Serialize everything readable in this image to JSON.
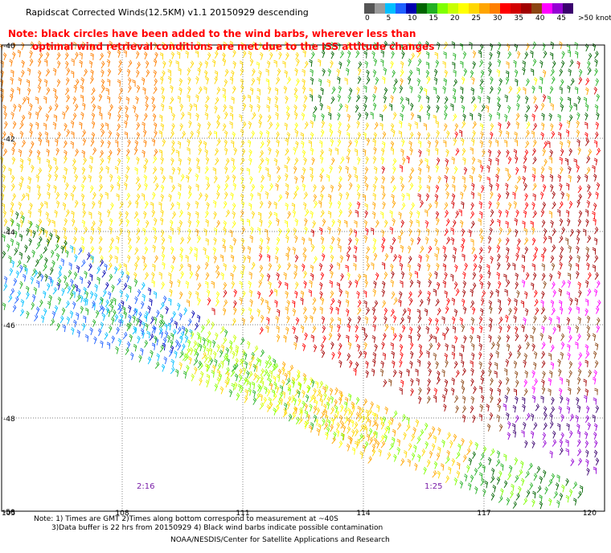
{
  "title": "Rapidscat Corrected Winds(12.5KM) v1.1 20150929 descending",
  "note_line1": "Note: black circles have been added to the wind barbs, wherever less than",
  "note_line2": "optimal wind retrieval conditions are met due to the ISS attitude changes",
  "legend": {
    "labels": [
      "0",
      "5",
      "10",
      "15",
      "20",
      "25",
      "30",
      "35",
      "40",
      "45",
      ">50 knots"
    ],
    "colors": [
      "#555555",
      "#9a9a9a",
      "#00bfff",
      "#1e60ff",
      "#0000b0",
      "#006400",
      "#22b022",
      "#7fff00",
      "#c8ff00",
      "#ffff00",
      "#ffd700",
      "#ffa500",
      "#ff7f00",
      "#ff0000",
      "#d20000",
      "#a00000",
      "#8b4513",
      "#ff00ff",
      "#9400d3",
      "#3a006e"
    ]
  },
  "axes": {
    "lat_labels": [
      "-40",
      "-42",
      "-44",
      "-46",
      "-48",
      "-50"
    ],
    "lon_labels": [
      "105",
      "108",
      "111",
      "114",
      "117",
      "120"
    ]
  },
  "time_labels": [
    "2:16",
    "1:25"
  ],
  "footer": {
    "line1": "Note: 1) Times are GMT 2)Times along bottom correspond to measurement at ~40S",
    "line2": "3)Data buffer is 22 hrs from 20150929 4) Black wind barbs indicate possible contamination",
    "line3": "NOAA/NESDIS/Center for Satellite Applications and Research"
  }
}
